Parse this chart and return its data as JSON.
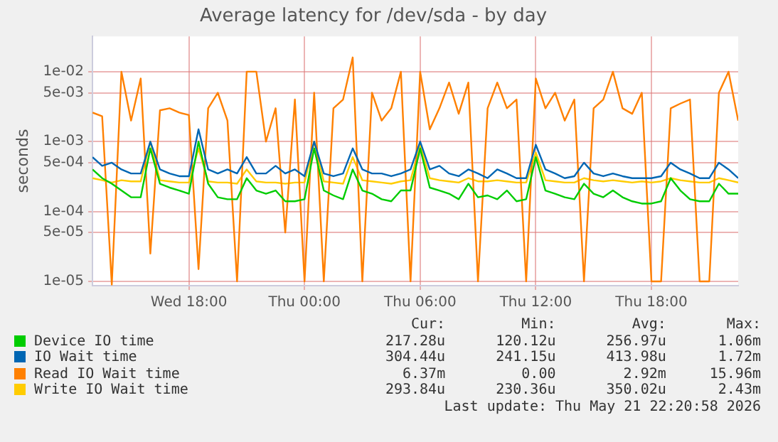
{
  "chart_data": {
    "type": "line",
    "title": "Average latency for /dev/sda - by day",
    "ylabel": "seconds",
    "x": [
      "2026-05-20T13:00",
      "2026-05-20T13:30",
      "2026-05-20T14:00",
      "2026-05-20T14:30",
      "2026-05-20T15:00",
      "2026-05-20T15:30",
      "2026-05-20T16:00",
      "2026-05-20T16:30",
      "2026-05-20T17:00",
      "2026-05-20T17:30",
      "2026-05-20T18:00",
      "2026-05-20T18:30",
      "2026-05-20T19:00",
      "2026-05-20T19:30",
      "2026-05-20T20:00",
      "2026-05-20T20:30",
      "2026-05-20T21:00",
      "2026-05-20T21:30",
      "2026-05-20T22:00",
      "2026-05-20T22:30",
      "2026-05-20T23:00",
      "2026-05-20T23:30",
      "2026-05-21T00:00",
      "2026-05-21T00:30",
      "2026-05-21T01:00",
      "2026-05-21T01:30",
      "2026-05-21T02:00",
      "2026-05-21T02:30",
      "2026-05-21T03:00",
      "2026-05-21T03:30",
      "2026-05-21T04:00",
      "2026-05-21T04:30",
      "2026-05-21T05:00",
      "2026-05-21T05:30",
      "2026-05-21T06:00",
      "2026-05-21T06:30",
      "2026-05-21T07:00",
      "2026-05-21T07:30",
      "2026-05-21T08:00",
      "2026-05-21T08:30",
      "2026-05-21T09:00",
      "2026-05-21T09:30",
      "2026-05-21T10:00",
      "2026-05-21T10:30",
      "2026-05-21T11:00",
      "2026-05-21T11:30",
      "2026-05-21T12:00",
      "2026-05-21T12:30",
      "2026-05-21T13:00",
      "2026-05-21T13:30",
      "2026-05-21T14:00",
      "2026-05-21T14:30",
      "2026-05-21T15:00",
      "2026-05-21T15:30",
      "2026-05-21T16:00",
      "2026-05-21T16:30",
      "2026-05-21T17:00",
      "2026-05-21T17:30",
      "2026-05-21T18:00",
      "2026-05-21T18:30",
      "2026-05-21T19:00",
      "2026-05-21T19:30",
      "2026-05-21T20:00",
      "2026-05-21T20:30",
      "2026-05-21T21:00",
      "2026-05-21T21:30",
      "2026-05-21T22:00",
      "2026-05-21T22:30"
    ],
    "xlim": [
      "2026-05-20T13:00",
      "2026-05-21T22:30"
    ],
    "xticks": [
      {
        "value": "2026-05-20T18:00",
        "label": "Wed 18:00"
      },
      {
        "value": "2026-05-21T00:00",
        "label": "Thu 00:00"
      },
      {
        "value": "2026-05-21T06:00",
        "label": "Thu 06:00"
      },
      {
        "value": "2026-05-21T12:00",
        "label": "Thu 12:00"
      },
      {
        "value": "2026-05-21T18:00",
        "label": "Thu 18:00"
      }
    ],
    "ylim": [
      8.7e-06,
      0.032
    ],
    "yticks": [
      {
        "value": 1e-05,
        "label": "1e-05"
      },
      {
        "value": 5e-05,
        "label": "5e-05"
      },
      {
        "value": 0.0001,
        "label": "1e-04"
      },
      {
        "value": 0.0005,
        "label": "5e-04"
      },
      {
        "value": 0.001,
        "label": "1e-03"
      },
      {
        "value": 0.005,
        "label": "5e-03"
      },
      {
        "value": 0.01,
        "label": "1e-02"
      }
    ],
    "log": "y",
    "grid": true,
    "legend": "bottom",
    "marker": "none",
    "line_style": "solid",
    "series": [
      {
        "name": "Device IO time",
        "color": "#00cc00",
        "values": [
          0.0004,
          0.0003,
          0.00025,
          0.0002,
          0.00016,
          0.00016,
          0.0008,
          0.00025,
          0.00022,
          0.0002,
          0.00018,
          0.001,
          0.00025,
          0.00016,
          0.00015,
          0.00015,
          0.0003,
          0.0002,
          0.00018,
          0.0002,
          0.00014,
          0.00014,
          0.00015,
          0.0008,
          0.0002,
          0.00017,
          0.00015,
          0.0004,
          0.0002,
          0.00018,
          0.00015,
          0.00014,
          0.0002,
          0.0002,
          0.0008,
          0.00022,
          0.0002,
          0.00018,
          0.00015,
          0.00025,
          0.00016,
          0.00017,
          0.00015,
          0.0002,
          0.00014,
          0.00015,
          0.0006,
          0.0002,
          0.00018,
          0.00016,
          0.00015,
          0.00025,
          0.00018,
          0.00016,
          0.0002,
          0.00016,
          0.00014,
          0.00013,
          0.00013,
          0.00014,
          0.0003,
          0.0002,
          0.00015,
          0.00014,
          0.00014,
          0.00025,
          0.00018,
          0.00018
        ]
      },
      {
        "name": "IO Wait time",
        "color": "#0066b3",
        "values": [
          0.0006,
          0.00045,
          0.0005,
          0.0004,
          0.00035,
          0.00035,
          0.001,
          0.0004,
          0.00035,
          0.00032,
          0.00032,
          0.0015,
          0.0004,
          0.00035,
          0.0004,
          0.00035,
          0.0006,
          0.00035,
          0.00035,
          0.00045,
          0.00035,
          0.0004,
          0.00032,
          0.001,
          0.00035,
          0.00032,
          0.00035,
          0.0008,
          0.0004,
          0.00035,
          0.00035,
          0.00032,
          0.00035,
          0.0004,
          0.001,
          0.0004,
          0.00045,
          0.00035,
          0.00032,
          0.0004,
          0.00035,
          0.0003,
          0.0004,
          0.00035,
          0.0003,
          0.0003,
          0.0009,
          0.0004,
          0.00035,
          0.0003,
          0.00032,
          0.0005,
          0.00035,
          0.00032,
          0.00035,
          0.00032,
          0.0003,
          0.0003,
          0.0003,
          0.00032,
          0.0005,
          0.0004,
          0.00035,
          0.0003,
          0.0003,
          0.0005,
          0.0004,
          0.0003
        ]
      },
      {
        "name": "Read IO Wait time",
        "color": "#ff8000",
        "values": [
          0.0026,
          0.0023,
          9e-06,
          0.01,
          0.002,
          0.008,
          2.5e-05,
          0.0028,
          0.003,
          0.0026,
          0.0024,
          1.5e-05,
          0.003,
          0.005,
          0.002,
          1e-05,
          0.01,
          0.01,
          0.001,
          0.003,
          5e-05,
          0.004,
          1e-05,
          0.005,
          1e-05,
          0.003,
          0.004,
          0.016,
          1e-05,
          0.005,
          0.002,
          0.003,
          0.01,
          1e-05,
          0.01,
          0.0015,
          0.003,
          0.007,
          0.0025,
          0.007,
          1e-05,
          0.003,
          0.007,
          0.003,
          0.004,
          1e-05,
          0.008,
          0.003,
          0.005,
          0.002,
          0.004,
          1e-05,
          0.003,
          0.004,
          0.01,
          0.003,
          0.0025,
          0.005,
          1e-05,
          1e-05,
          0.003,
          0.0035,
          0.004,
          1e-05,
          1e-05,
          0.005,
          0.01,
          0.002
        ]
      },
      {
        "name": "Write IO Wait time",
        "color": "#ffcc00",
        "values": [
          0.0003,
          0.00028,
          0.00026,
          0.00028,
          0.00027,
          0.00027,
          0.001,
          0.00028,
          0.00027,
          0.00026,
          0.00026,
          0.0008,
          0.00027,
          0.00026,
          0.00026,
          0.00025,
          0.0004,
          0.00027,
          0.00026,
          0.00026,
          0.00025,
          0.00026,
          0.00026,
          0.001,
          0.00027,
          0.00026,
          0.00025,
          0.0006,
          0.00028,
          0.00027,
          0.00026,
          0.00025,
          0.00027,
          0.00028,
          0.0009,
          0.0003,
          0.00028,
          0.00027,
          0.00026,
          0.0003,
          0.00027,
          0.00027,
          0.00028,
          0.00027,
          0.00026,
          0.00026,
          0.0007,
          0.00028,
          0.00027,
          0.00026,
          0.00026,
          0.0003,
          0.00028,
          0.00027,
          0.00028,
          0.00027,
          0.00026,
          0.00027,
          0.00026,
          0.00027,
          0.0003,
          0.00028,
          0.00027,
          0.00026,
          0.00026,
          0.0003,
          0.00028,
          0.00026
        ]
      }
    ],
    "annotations": [
      "Cur:",
      "Min:",
      "Avg:",
      "Max:",
      "217.28u",
      "120.12u",
      "256.97u",
      "1.06m",
      "304.44u",
      "241.15u",
      "413.98u",
      "1.72m",
      "6.37m",
      "0.00",
      "2.92m",
      "15.96m",
      "293.84u",
      "230.36u",
      "350.02u",
      "2.43m",
      "Last update: Thu May 21 22:20:58 2026"
    ]
  }
}
